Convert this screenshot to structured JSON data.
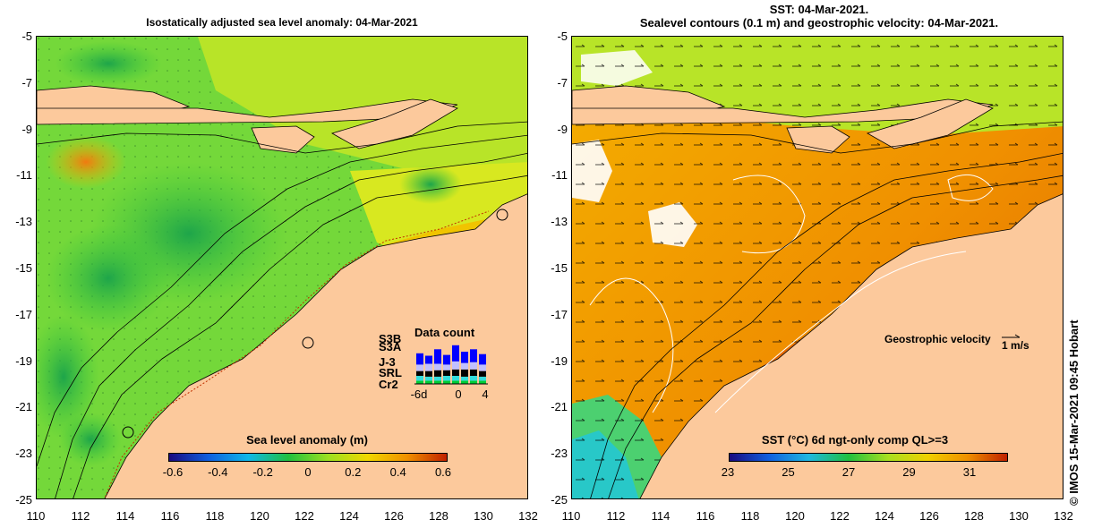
{
  "left_panel": {
    "title": "Isostatically adjusted sea level anomaly: 04-Mar-2021",
    "colorbar": {
      "title": "Sea level anomaly (m)",
      "ticks": [
        "-0.6",
        "-0.4",
        "-0.2",
        "0",
        "0.2",
        "0.4",
        "0.6"
      ],
      "range": [
        -0.6,
        0.6
      ]
    },
    "data_count": {
      "title": "Data count",
      "satellites": [
        "S3B",
        "S3A",
        "J-3",
        "SRL",
        "Cr2"
      ],
      "satellite_colors": [
        "#0000ff",
        "#c0c0ff",
        "#000000",
        "#33dddd",
        "#00cc33"
      ],
      "x_labels": [
        "-6d",
        "0",
        "4"
      ]
    }
  },
  "right_panel": {
    "title_line1": "SST: 04-Mar-2021.",
    "title_line2": "Sealevel contours (0.1 m) and geostrophic velocity: 04-Mar-2021.",
    "colorbar": {
      "title": "SST (°C) 6d ngt-only comp QL>=3",
      "ticks": [
        "23",
        "25",
        "27",
        "29",
        "31"
      ],
      "range": [
        22,
        32
      ]
    },
    "velocity_legend": {
      "label": "Geostrophic velocity",
      "scale": "1 m/s"
    }
  },
  "axes": {
    "lat_ticks": [
      "-5",
      "-7",
      "-9",
      "-11",
      "-13",
      "-15",
      "-17",
      "-19",
      "-21",
      "-23",
      "-25"
    ],
    "lon_ticks": [
      "110",
      "112",
      "114",
      "116",
      "118",
      "120",
      "122",
      "124",
      "126",
      "128",
      "130",
      "132"
    ],
    "lat_range": [
      -25,
      -5
    ],
    "lon_range": [
      110,
      132
    ]
  },
  "credit": "© IMOS 15-Mar-2021 09:45 Hobart",
  "colors": {
    "land": "#fcc99c",
    "slab_low": "#3cc83c",
    "slab_high": "#e8c800",
    "sst_mid": "#f0a000",
    "sst_warm": "#e07000",
    "sst_cool": "#28c8c8"
  }
}
